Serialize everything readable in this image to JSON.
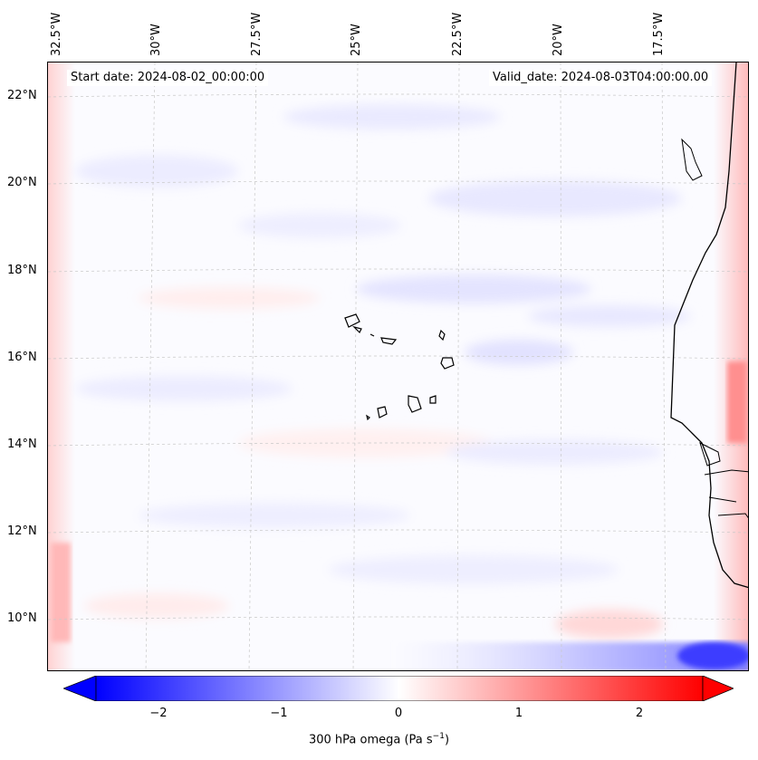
{
  "map": {
    "lon_labels": [
      "32.5°W",
      "30°W",
      "27.5°W",
      "25°W",
      "22.5°W",
      "20°W",
      "17.5°W"
    ],
    "lat_labels": [
      "22°N",
      "20°N",
      "18°N",
      "16°N",
      "14°N",
      "12°N",
      "10°N"
    ],
    "start_date": "Start date: 2024-08-02_00:00:00",
    "valid_date": "Valid_date: 2024-08-03T04:00:00.00"
  },
  "colorbar": {
    "ticks": [
      "−2",
      "−1",
      "0",
      "1",
      "2"
    ],
    "label_prefix": "300 hPa omega (Pa s",
    "label_exp": "−1",
    "label_suffix": ")",
    "colors": {
      "min": "#0000ff",
      "mid": "#ffffff",
      "max": "#ff0000"
    },
    "range": [
      -2.5,
      2.5
    ]
  }
}
